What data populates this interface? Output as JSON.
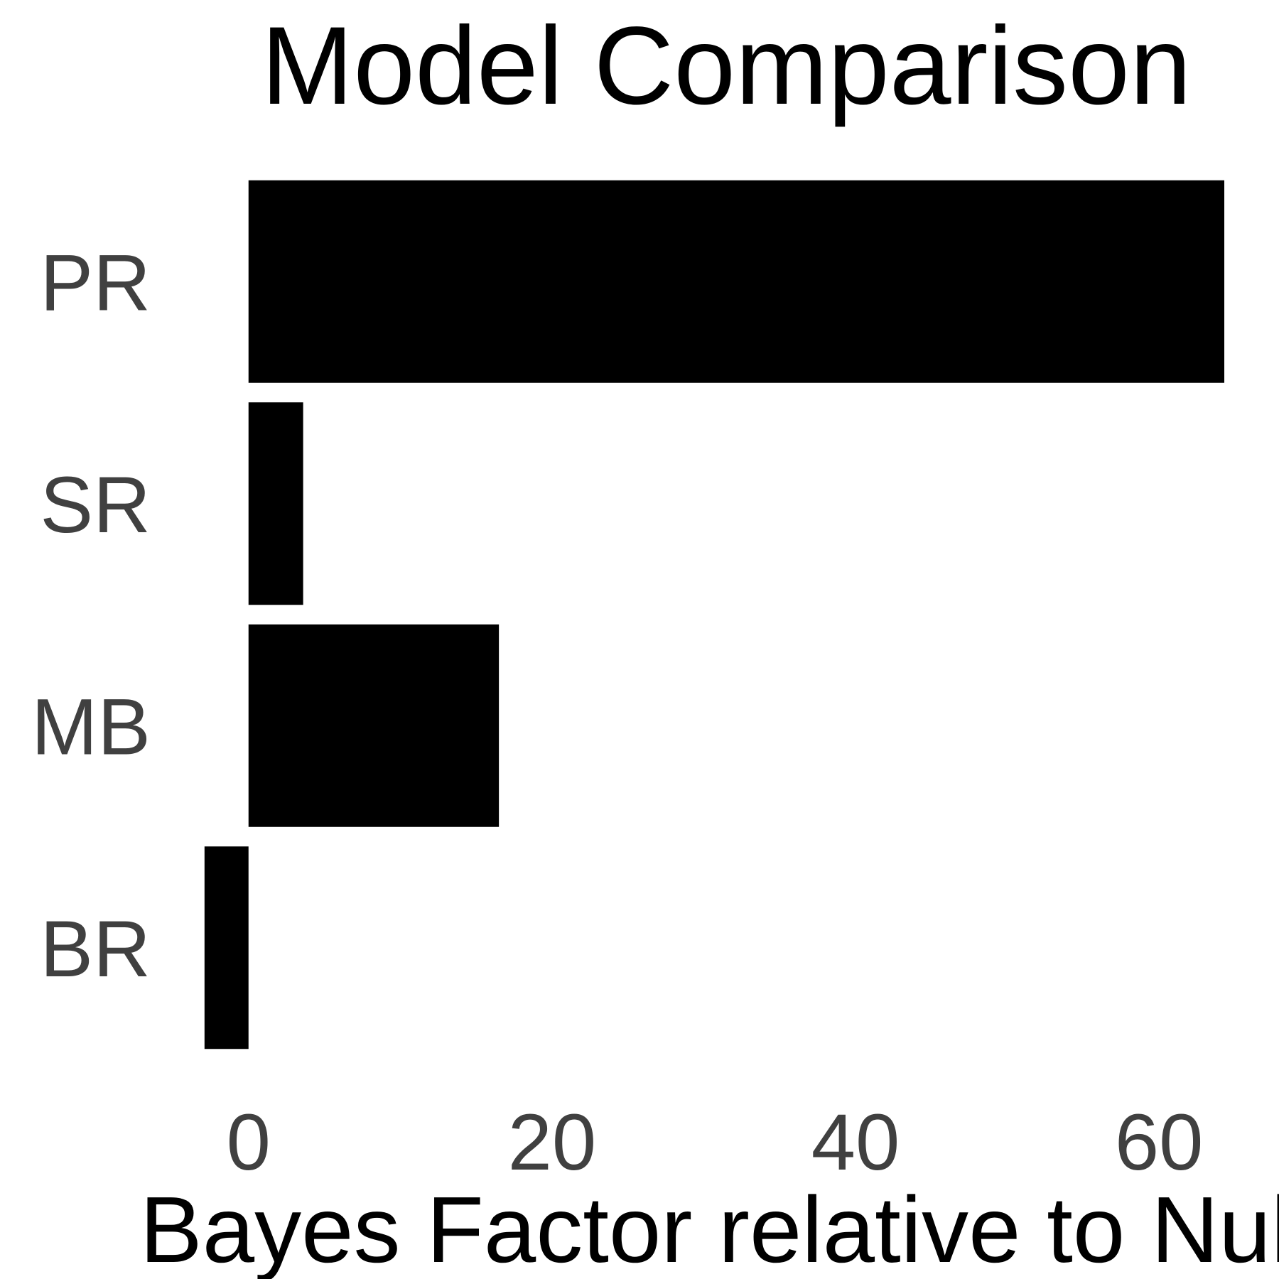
{
  "chart_data": {
    "type": "bar",
    "orientation": "horizontal",
    "title": "Model Comparison",
    "xlabel": "Bayes Factor relative to Null",
    "ylabel": "",
    "categories": [
      "PR",
      "SR",
      "MB",
      "BR"
    ],
    "values": [
      64.3,
      3.6,
      16.5,
      -2.9
    ],
    "xlim": [
      -3.5,
      66.5
    ],
    "xticks": [
      0,
      20,
      40,
      60
    ],
    "xtick_labels": [
      "0",
      "20",
      "40",
      "60"
    ],
    "grid": false,
    "legend": "none",
    "bar_color": "#000000",
    "tick_label_color": "#404040",
    "text_color": "#000000"
  }
}
